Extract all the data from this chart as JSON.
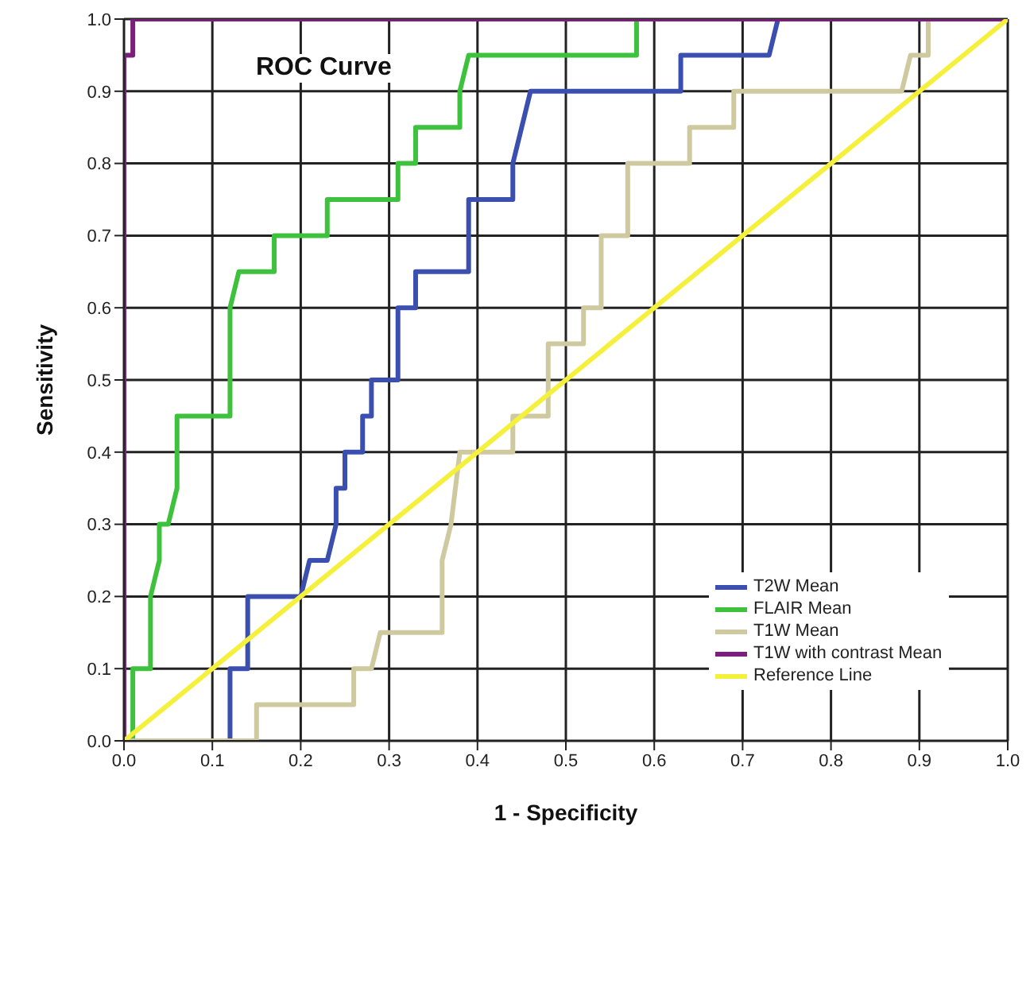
{
  "chart_data": {
    "type": "line",
    "title": "ROC Curve",
    "xlabel": "1 - Specificity",
    "ylabel": "Sensitivity",
    "xlim": [
      0,
      1
    ],
    "ylim": [
      0,
      1
    ],
    "xticks": [
      {
        "value": 0,
        "label": "0.0"
      },
      {
        "value": 0.1,
        "label": "0.1"
      },
      {
        "value": 0.2,
        "label": "0.2"
      },
      {
        "value": 0.3,
        "label": "0.3"
      },
      {
        "value": 0.4,
        "label": "0.4"
      },
      {
        "value": 0.5,
        "label": "0.5"
      },
      {
        "value": 0.6,
        "label": "0.6"
      },
      {
        "value": 0.7,
        "label": "0.7"
      },
      {
        "value": 0.8,
        "label": "0.8"
      },
      {
        "value": 0.9,
        "label": "0.9"
      },
      {
        "value": 1,
        "label": "1.0"
      }
    ],
    "yticks": [
      {
        "value": 0,
        "label": "0.0"
      },
      {
        "value": 0.1,
        "label": "0.1"
      },
      {
        "value": 0.2,
        "label": "0.2"
      },
      {
        "value": 0.3,
        "label": "0.3"
      },
      {
        "value": 0.4,
        "label": "0.4"
      },
      {
        "value": 0.5,
        "label": "0.5"
      },
      {
        "value": 0.6,
        "label": "0.6"
      },
      {
        "value": 0.7,
        "label": "0.7"
      },
      {
        "value": 0.8,
        "label": "0.8"
      },
      {
        "value": 0.9,
        "label": "0.9"
      },
      {
        "value": 1,
        "label": "1.0"
      }
    ],
    "grid": true,
    "legend": "bottom right",
    "marker": "none",
    "line_style": "solid",
    "series": [
      {
        "name": "T2W Mean",
        "color": "#3a4fb0",
        "x": [
          0.12,
          0.12,
          0.14,
          0.14,
          0.2,
          0.21,
          0.23,
          0.24,
          0.24,
          0.25,
          0.25,
          0.27,
          0.27,
          0.28,
          0.28,
          0.31,
          0.31,
          0.33,
          0.33,
          0.39,
          0.39,
          0.44,
          0.44,
          0.45,
          0.46,
          0.63,
          0.63,
          0.73,
          0.74
        ],
        "values": [
          0,
          0.1,
          0.1,
          0.2,
          0.2,
          0.25,
          0.25,
          0.3,
          0.35,
          0.35,
          0.4,
          0.4,
          0.45,
          0.45,
          0.5,
          0.5,
          0.6,
          0.6,
          0.65,
          0.65,
          0.75,
          0.75,
          0.8,
          0.85,
          0.9,
          0.9,
          0.95,
          0.95,
          1
        ]
      },
      {
        "name": "FLAIR Mean",
        "color": "#3ec23e",
        "x": [
          0,
          0.01,
          0.01,
          0.03,
          0.03,
          0.04,
          0.04,
          0.05,
          0.06,
          0.06,
          0.12,
          0.12,
          0.13,
          0.17,
          0.17,
          0.23,
          0.23,
          0.31,
          0.31,
          0.33,
          0.33,
          0.38,
          0.38,
          0.39,
          0.58,
          0.58
        ],
        "values": [
          0,
          0,
          0.1,
          0.1,
          0.2,
          0.25,
          0.3,
          0.3,
          0.35,
          0.45,
          0.45,
          0.6,
          0.65,
          0.65,
          0.7,
          0.7,
          0.75,
          0.75,
          0.8,
          0.8,
          0.85,
          0.85,
          0.9,
          0.95,
          0.95,
          1
        ]
      },
      {
        "name": "T1W Mean",
        "color": "#cfc9a0",
        "x": [
          0,
          0.15,
          0.15,
          0.26,
          0.26,
          0.28,
          0.29,
          0.36,
          0.36,
          0.37,
          0.38,
          0.44,
          0.44,
          0.48,
          0.48,
          0.48,
          0.52,
          0.52,
          0.54,
          0.54,
          0.57,
          0.57,
          0.64,
          0.64,
          0.69,
          0.69,
          0.88,
          0.89,
          0.91,
          0.91
        ],
        "values": [
          0,
          0,
          0.05,
          0.05,
          0.1,
          0.1,
          0.15,
          0.15,
          0.25,
          0.3,
          0.4,
          0.4,
          0.45,
          0.45,
          0.5,
          0.55,
          0.55,
          0.6,
          0.6,
          0.7,
          0.7,
          0.8,
          0.8,
          0.85,
          0.85,
          0.9,
          0.9,
          0.95,
          0.95,
          1
        ]
      },
      {
        "name": "T1W with contrast Mean",
        "color": "#7b1f7b",
        "x": [
          0,
          0,
          0.01,
          0.01,
          1
        ],
        "values": [
          0,
          0.95,
          0.95,
          1,
          1
        ]
      },
      {
        "name": "Reference Line",
        "color": "#f5f03c",
        "x": [
          0,
          1
        ],
        "values": [
          0,
          1
        ]
      }
    ]
  }
}
